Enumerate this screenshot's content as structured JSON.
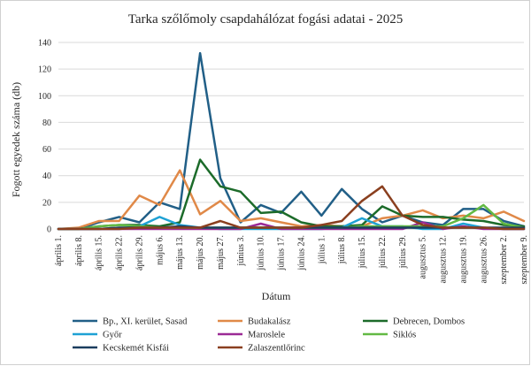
{
  "chart_data": {
    "type": "line",
    "title": "Tarka szőlőmoly csapdahálózat fogási adatai - 2025",
    "xlabel": "Dátum",
    "ylabel": "Fogott egyedek száma (db)",
    "ylim": [
      0,
      140
    ],
    "yticks": [
      0,
      20,
      40,
      60,
      80,
      100,
      120,
      140
    ],
    "grid": "horizontal",
    "legend_position": "bottom",
    "categories": [
      "április 1.",
      "április 8.",
      "április 15.",
      "április 22.",
      "április 29.",
      "május 6.",
      "május 13.",
      "május 20.",
      "május 27.",
      "június 3.",
      "június 10.",
      "június 17.",
      "június 24.",
      "július 1.",
      "július 8.",
      "július 15.",
      "július 22.",
      "július 29.",
      "augusztus 5.",
      "augusztus 12.",
      "augusztus 19.",
      "augusztus 26.",
      "szeptember 2.",
      "szeptember 9."
    ],
    "series": [
      {
        "name": "Bp., XI. kerület, Sasad",
        "color": "#215f87",
        "values": [
          0,
          0,
          5,
          9,
          5,
          20,
          15,
          132,
          38,
          5,
          18,
          12,
          28,
          10,
          30,
          15,
          5,
          10,
          5,
          3,
          15,
          15,
          6,
          2
        ]
      },
      {
        "name": "Budakalász",
        "color": "#e08948",
        "values": [
          0,
          1,
          6,
          6,
          25,
          18,
          44,
          11,
          21,
          6,
          8,
          5,
          2,
          3,
          2,
          2,
          8,
          10,
          14,
          8,
          10,
          8,
          13,
          6
        ]
      },
      {
        "name": "Debrecen, Dombos",
        "color": "#1c6b2a",
        "values": [
          0,
          0,
          2,
          3,
          3,
          2,
          5,
          52,
          32,
          28,
          12,
          13,
          5,
          2,
          2,
          3,
          17,
          10,
          9,
          9,
          7,
          6,
          3,
          2
        ]
      },
      {
        "name": "Győr",
        "color": "#1ea1d4",
        "values": [
          0,
          0,
          0,
          0,
          2,
          9,
          3,
          1,
          0,
          0,
          0,
          0,
          0,
          0,
          1,
          8,
          2,
          2,
          0,
          0,
          4,
          1,
          0,
          0
        ]
      },
      {
        "name": "Maroslele",
        "color": "#9b2a95",
        "values": [
          0,
          0,
          0,
          0,
          0,
          0,
          0,
          0,
          0,
          0,
          4,
          0,
          0,
          0,
          0,
          0,
          0,
          0,
          5,
          0,
          2,
          0,
          0,
          0
        ]
      },
      {
        "name": "Siklós",
        "color": "#62b944",
        "values": [
          0,
          0,
          2,
          3,
          2,
          1,
          1,
          1,
          1,
          1,
          1,
          1,
          1,
          1,
          1,
          2,
          2,
          2,
          2,
          2,
          8,
          18,
          4,
          1
        ]
      },
      {
        "name": "Kecskemét Kisfái",
        "color": "#1b3d5e",
        "values": [
          0,
          0,
          0,
          1,
          1,
          1,
          2,
          1,
          1,
          1,
          1,
          1,
          1,
          1,
          1,
          1,
          1,
          1,
          1,
          1,
          1,
          1,
          1,
          1
        ]
      },
      {
        "name": "Zalaszentlőrinc",
        "color": "#8a3f1f",
        "values": [
          0,
          0,
          0,
          0,
          1,
          1,
          1,
          1,
          6,
          1,
          1,
          1,
          1,
          3,
          6,
          21,
          32,
          10,
          3,
          1,
          1,
          1,
          0,
          0
        ]
      }
    ]
  }
}
